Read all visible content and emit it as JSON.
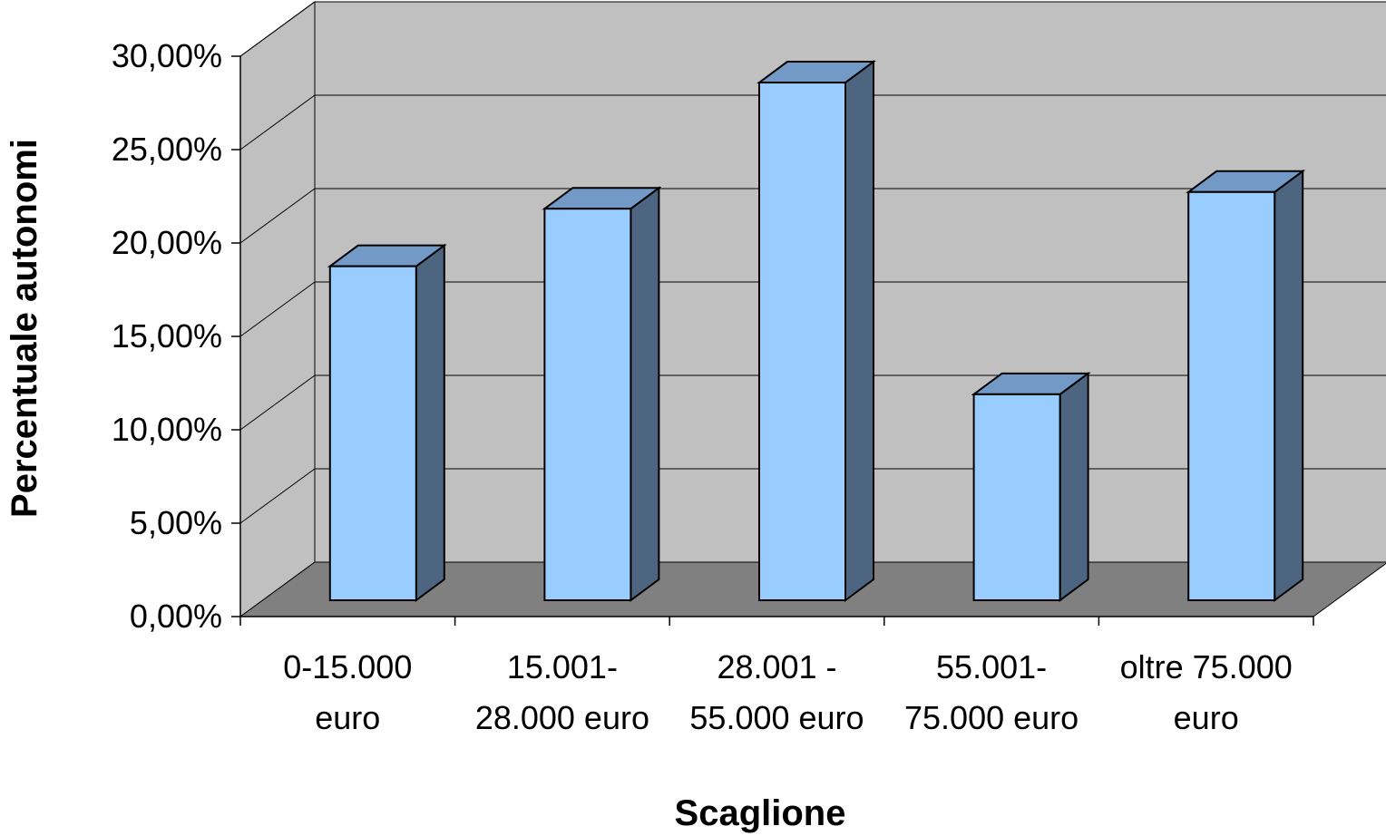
{
  "chart_data": {
    "type": "bar",
    "style": "3d-column",
    "categories": [
      "0-15.000 euro",
      "15.001- 28.000 euro",
      "28.001 - 55.000 euro",
      "55.001- 75.000 euro",
      "oltre 75.000 euro"
    ],
    "category_lines": [
      [
        "0-15.000",
        "euro"
      ],
      [
        "15.001-",
        "28.000 euro"
      ],
      [
        "28.001 -",
        "55.000 euro"
      ],
      [
        "55.001-",
        "75.000 euro"
      ],
      [
        "oltre 75.000",
        "euro"
      ]
    ],
    "values": [
      18.0,
      21.1,
      27.9,
      11.1,
      22.0
    ],
    "xlabel": "Scaglione",
    "ylabel": "Percentuale autonomi",
    "ylim": [
      0,
      30
    ],
    "yticks": [
      0,
      5,
      10,
      15,
      20,
      25,
      30
    ],
    "ytick_labels": [
      "0,00%",
      "5,00%",
      "10,00%",
      "15,00%",
      "20,00%",
      "25,00%",
      "30,00%"
    ],
    "grid": true,
    "legend": "none",
    "colors": {
      "bar_front": "#99ccff",
      "bar_top": "#7399c6",
      "bar_side": "#4d6580",
      "wall": "#c0c0c0",
      "floor": "#808080",
      "gridline": "#000000"
    }
  }
}
